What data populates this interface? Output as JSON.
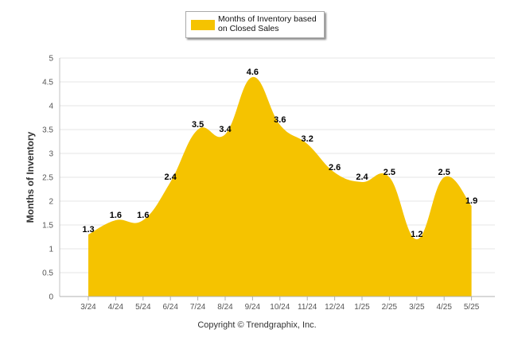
{
  "chart_data": {
    "type": "area",
    "categories": [
      "3/24",
      "4/24",
      "5/24",
      "6/24",
      "7/24",
      "8/24",
      "9/24",
      "10/24",
      "11/24",
      "12/24",
      "1/25",
      "2/25",
      "3/25",
      "4/25",
      "5/25"
    ],
    "series": [
      {
        "name": "Months of Inventory based on Closed Sales",
        "values": [
          1.3,
          1.6,
          1.6,
          2.4,
          3.5,
          3.4,
          4.6,
          3.6,
          3.2,
          2.6,
          2.4,
          2.5,
          1.2,
          2.5,
          1.9
        ],
        "data_labels": [
          "1.3",
          "1.6",
          "1.6",
          "2.4",
          "3.5",
          "3.4",
          "4.6",
          "3.6",
          "3.2",
          "2.6",
          "2.4",
          "2.5",
          "1.2",
          "2.5",
          "1.9"
        ],
        "color": "#f5c300"
      }
    ],
    "ylabel": "Months of Inventory",
    "xlabel": "",
    "ylim": [
      0,
      5
    ],
    "yticks": [
      "0",
      "0.5",
      "1",
      "1.5",
      "2",
      "2.5",
      "3",
      "3.5",
      "4",
      "4.5",
      "5"
    ],
    "ytick_values": [
      0,
      0.5,
      1,
      1.5,
      2,
      2.5,
      3,
      3.5,
      4,
      4.5,
      5
    ],
    "grid": true,
    "legend_position": "top-center"
  },
  "legend": {
    "label": "Months of Inventory based on Closed Sales",
    "color": "#f5c300"
  },
  "footer": {
    "copyright": "Copyright © Trendgraphix, Inc."
  }
}
